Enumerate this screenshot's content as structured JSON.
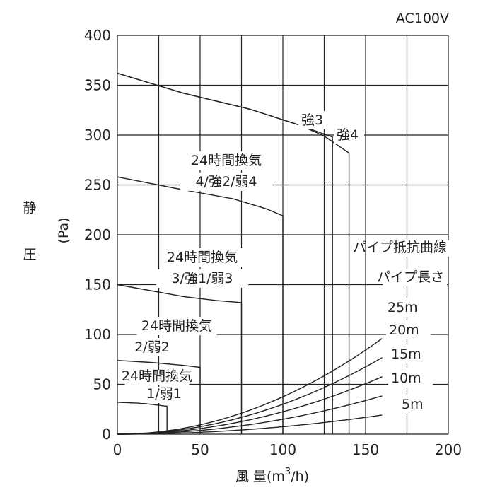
{
  "chart_data": {
    "type": "line",
    "voltage": "AC100V",
    "xlabel_main": "風 量(m",
    "xlabel_sup": "3",
    "xlabel_end": "/h)",
    "ylabel_kanji_1": "静",
    "ylabel_kanji_2": "圧",
    "ylabel_unit": "(Pa)",
    "xlim": [
      0,
      200
    ],
    "ylim": [
      0,
      400
    ],
    "x_ticks": [
      0,
      50,
      100,
      150,
      200
    ],
    "y_ticks": [
      0,
      50,
      100,
      150,
      200,
      250,
      300,
      350,
      400
    ],
    "grid": true,
    "fan_curves": [
      {
        "points": [
          [
            0,
            362
          ],
          [
            40,
            342
          ],
          [
            80,
            326
          ],
          [
            110,
            310
          ],
          [
            125,
            301
          ],
          [
            130,
            298
          ]
        ],
        "drop_to_x": 130
      },
      {
        "points": [
          [
            0,
            362
          ],
          [
            40,
            342
          ],
          [
            80,
            326
          ],
          [
            110,
            310
          ],
          [
            125,
            299
          ],
          [
            140,
            282
          ]
        ],
        "drop_to_x": 140
      },
      {
        "points": [
          [
            0,
            258
          ],
          [
            40,
            245
          ],
          [
            70,
            236
          ],
          [
            90,
            226
          ],
          [
            100,
            219
          ]
        ],
        "drop_to_x": 100
      },
      {
        "points": [
          [
            0,
            150
          ],
          [
            20,
            144
          ],
          [
            40,
            138
          ],
          [
            60,
            134
          ],
          [
            75,
            132
          ]
        ],
        "drop_to_x": 75
      },
      {
        "points": [
          [
            0,
            74
          ],
          [
            20,
            72
          ],
          [
            40,
            69
          ],
          [
            50,
            67
          ]
        ],
        "drop_to_x": 50
      },
      {
        "points": [
          [
            0,
            32
          ],
          [
            15,
            31
          ],
          [
            25,
            29
          ],
          [
            30,
            28
          ]
        ],
        "drop_to_x": 30
      }
    ],
    "fan_labels": {
      "strong3": "強3",
      "strong4": "強4",
      "mode4_line1": "24時間換気",
      "mode4_line2": "4/強2/弱4",
      "mode3_line1": "24時間換気",
      "mode3_line2": "3/強1/弱3",
      "mode2_line1": "24時間換気",
      "mode2_line2": "2/弱2",
      "mode1_line1": "24時間換気",
      "mode1_line2": "1/弱1"
    },
    "pipe_title_1": "パイプ抵抗曲線",
    "pipe_title_2": "パイプ長さ",
    "pipe_curves": [
      {
        "length": "25m",
        "k": 0.00375
      },
      {
        "length": "20m",
        "k": 0.003
      },
      {
        "length": "15m",
        "k": 0.00225
      },
      {
        "length": "10m",
        "k": 0.0015
      },
      {
        "length": "5m",
        "k": 0.00075
      }
    ]
  }
}
